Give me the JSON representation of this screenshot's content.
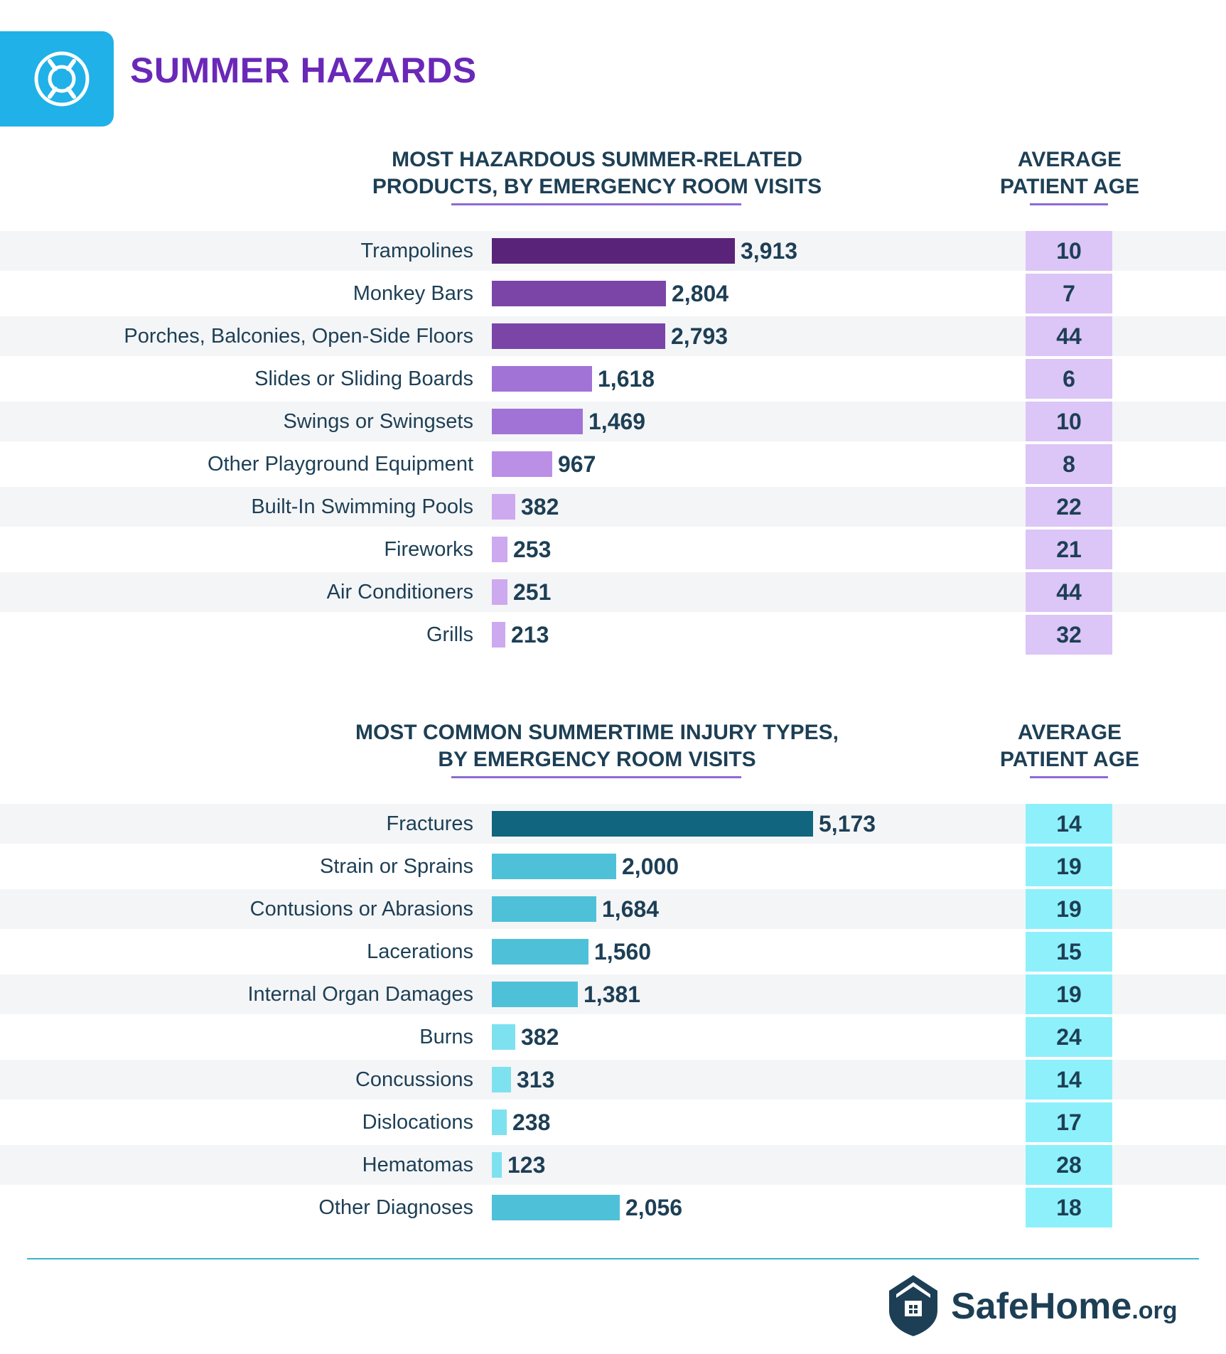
{
  "header": {
    "title": "SUMMER HAZARDS",
    "icon": "lifebuoy-icon"
  },
  "colors": {
    "accent": "#1fb1e8",
    "title": "#6a28b8",
    "text": "#1d3f55",
    "purple_age_box": "#dcc5f7",
    "cyan_age_box": "#8ef0fb"
  },
  "chart_data": [
    {
      "type": "bar",
      "orientation": "horizontal",
      "title_line1": "MOST HAZARDOUS SUMMER-RELATED",
      "title_line2": "PRODUCTS, BY EMERGENCY ROOM VISITS",
      "age_header_line1": "AVERAGE",
      "age_header_line2": "PATIENT AGE",
      "categories": [
        "Trampolines",
        "Monkey Bars",
        "Porches, Balconies, Open-Side Floors",
        "Slides or Sliding Boards",
        "Swings or Swingsets",
        "Other Playground Equipment",
        "Built-In Swimming Pools",
        "Fireworks",
        "Air Conditioners",
        "Grills"
      ],
      "values": [
        3913,
        2804,
        2793,
        1618,
        1469,
        967,
        382,
        253,
        251,
        213
      ],
      "value_labels": [
        "3,913",
        "2,804",
        "2,793",
        "1,618",
        "1,469",
        "967",
        "382",
        "253",
        "251",
        "213"
      ],
      "avg_patient_age": [
        10,
        7,
        44,
        6,
        10,
        8,
        22,
        21,
        44,
        32
      ],
      "bar_colors": [
        "#5a237a",
        "#7b45a8",
        "#7b45a8",
        "#a273d6",
        "#a273d6",
        "#bb8fe6",
        "#cda9f0",
        "#cda9f0",
        "#cda9f0",
        "#cda9f0"
      ]
    },
    {
      "type": "bar",
      "orientation": "horizontal",
      "title_line1": "MOST COMMON SUMMERTIME INJURY TYPES,",
      "title_line2": "BY EMERGENCY ROOM VISITS",
      "age_header_line1": "AVERAGE",
      "age_header_line2": "PATIENT AGE",
      "categories": [
        "Fractures",
        "Strain or Sprains",
        "Contusions or Abrasions",
        "Lacerations",
        "Internal Organ Damages",
        "Burns",
        "Concussions",
        "Dislocations",
        "Hematomas",
        "Other Diagnoses"
      ],
      "values": [
        5173,
        2000,
        1684,
        1560,
        1381,
        382,
        313,
        238,
        123,
        2056
      ],
      "value_labels": [
        "5,173",
        "2,000",
        "1,684",
        "1,560",
        "1,381",
        "382",
        "313",
        "238",
        "123",
        "2,056"
      ],
      "avg_patient_age": [
        14,
        19,
        19,
        15,
        19,
        24,
        14,
        17,
        28,
        18
      ],
      "bar_colors": [
        "#11657e",
        "#4ec1d8",
        "#4ec1d8",
        "#4ec1d8",
        "#4ec1d8",
        "#7ee1f0",
        "#7ee1f0",
        "#7ee1f0",
        "#7ee1f0",
        "#4ec1d8"
      ]
    }
  ],
  "footer": {
    "logo_name": "SafeHome",
    "logo_suffix": ".org",
    "logo_icon": "house-shield-icon"
  }
}
